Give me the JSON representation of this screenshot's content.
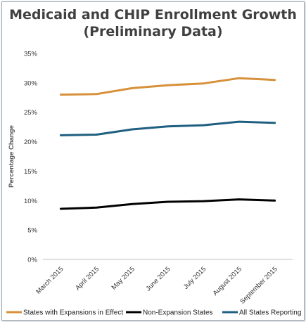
{
  "chart_data": {
    "type": "line",
    "title": "Medicaid and CHIP Enrollment Growth",
    "subtitle": "(Preliminary Data)",
    "ylabel": "Percentage Change",
    "xlabel": "",
    "categories": [
      "March 2015",
      "April 2015",
      "May 2015",
      "June 2015",
      "July 2015",
      "August 2015",
      "September 2015"
    ],
    "y_ticks": [
      "0%",
      "5%",
      "10%",
      "15%",
      "20%",
      "25%",
      "30%",
      "35%"
    ],
    "ylim": [
      0,
      35
    ],
    "grid": false,
    "legend_position": "bottom",
    "series": [
      {
        "name": "States with Expansions in Effect",
        "color": "#d6913a",
        "values": [
          28.0,
          28.1,
          29.1,
          29.6,
          29.9,
          30.8,
          30.5
        ]
      },
      {
        "name": "Non-Expansion States",
        "color": "#000000",
        "values": [
          8.6,
          8.8,
          9.4,
          9.8,
          9.9,
          10.2,
          10.0
        ]
      },
      {
        "name": "All States Reporting",
        "color": "#1f5f80",
        "values": [
          21.1,
          21.2,
          22.1,
          22.6,
          22.8,
          23.4,
          23.2
        ]
      }
    ]
  }
}
